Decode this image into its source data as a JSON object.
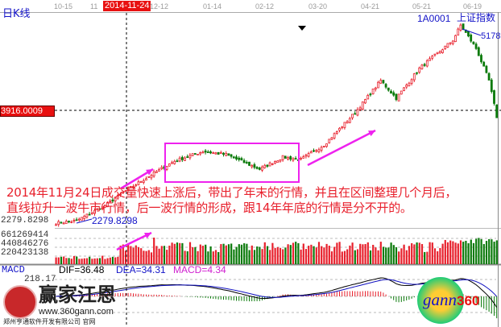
{
  "header": {
    "period_label": "日K线",
    "x_axis_dates": [
      "10-15",
      "11",
      "12-12",
      "01-14",
      "02-12",
      "03-20",
      "04-21",
      "05-21",
      "06-19"
    ],
    "cursor_date": "2014-11-24",
    "symbol": "1A0001",
    "index_name": "上证指数"
  },
  "price_panel": {
    "cursor_price": "3916.0009",
    "low_label": "2279.8298",
    "low_annotation": "2279.8298",
    "high_annotation": "5178"
  },
  "volume_panel": {
    "ticks": [
      "661269414",
      "440846276",
      "220423138"
    ]
  },
  "macd_panel": {
    "title": "MACD",
    "dif": "DIF=36.48",
    "dea": "DEA=34.31",
    "macd": "MACD=4.34",
    "top_tick": "218.17"
  },
  "annotation": {
    "line1": "2014年11月24日成交量快速上涨后，带出了年末的行情，并且在区间整理几个月后，",
    "line2": "直线拉升一波牛市行情，后一波行情的形成，跟14年年底的行情是分不开的。",
    "color": "#e8202c",
    "highlight_color": "#ee22ee"
  },
  "watermarks": {
    "left_brand": "赢家江恩",
    "left_url": "www.360gann.com",
    "left_company": "郑州亨通软件开发有限公司 官网",
    "right_brand": "gann360"
  },
  "colors": {
    "up": "#e8202c",
    "down": "#0a7a0a",
    "dif": "#000000",
    "dea": "#1010c0"
  },
  "chart_data": {
    "type": "candlestick",
    "title": "上证指数",
    "key_closes": [
      {
        "bar": 0,
        "close": 2244
      },
      {
        "bar": 8,
        "close": 2280
      },
      {
        "bar": 19,
        "close": 2507
      },
      {
        "bar": 28,
        "close": 2746
      },
      {
        "bar": 38,
        "close": 2985
      },
      {
        "bar": 46,
        "close": 3164
      },
      {
        "bar": 57,
        "close": 3307
      },
      {
        "bar": 66,
        "close": 3260
      },
      {
        "bar": 79,
        "close": 3044
      },
      {
        "bar": 88,
        "close": 3223
      },
      {
        "bar": 95,
        "close": 3187
      },
      {
        "bar": 104,
        "close": 3403
      },
      {
        "bar": 116,
        "close": 3880
      },
      {
        "bar": 126,
        "close": 4358
      },
      {
        "bar": 132,
        "close": 4095
      },
      {
        "bar": 141,
        "close": 4537
      },
      {
        "bar": 154,
        "close": 4955
      },
      {
        "bar": 157,
        "close": 5178
      },
      {
        "bar": 163,
        "close": 4835
      },
      {
        "bar": 168,
        "close": 4358
      },
      {
        "bar": 171,
        "close": 3820
      }
    ],
    "volume_peak": 661269414
  }
}
